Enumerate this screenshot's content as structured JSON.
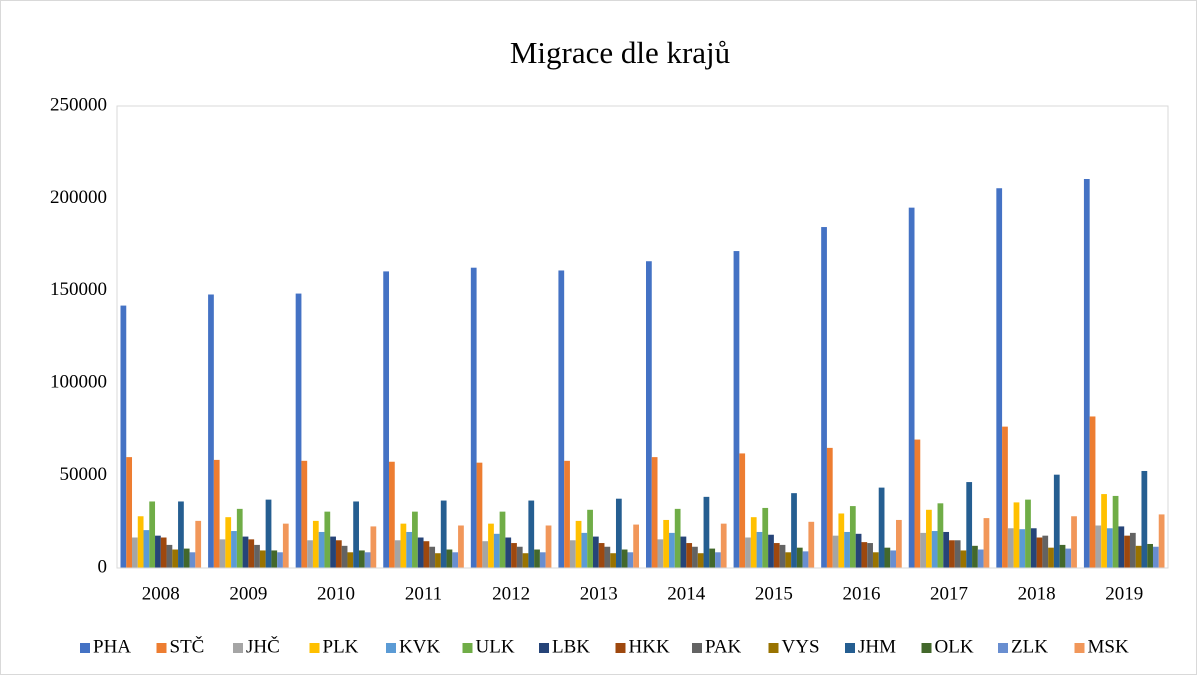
{
  "chart_data": {
    "type": "bar",
    "title": "Migrace dle krajů",
    "categories": [
      "2008",
      "2009",
      "2010",
      "2011",
      "2012",
      "2013",
      "2014",
      "2015",
      "2016",
      "2017",
      "2018",
      "2019"
    ],
    "series": [
      {
        "name": "PHA",
        "color": "#4472c4",
        "values": [
          142000,
          148000,
          148500,
          160500,
          162500,
          161000,
          166000,
          171500,
          184500,
          195000,
          205500,
          210500
        ]
      },
      {
        "name": "STČ",
        "color": "#ed7d31",
        "values": [
          60000,
          58500,
          58000,
          57500,
          57000,
          58000,
          60000,
          62000,
          65000,
          69500,
          76500,
          82000
        ]
      },
      {
        "name": "JHČ",
        "color": "#a5a5a5",
        "values": [
          16500,
          15500,
          15000,
          15000,
          14500,
          15000,
          15500,
          16500,
          17500,
          19000,
          21500,
          23000
        ]
      },
      {
        "name": "PLK",
        "color": "#ffc000",
        "values": [
          28000,
          27500,
          25500,
          24000,
          24000,
          25500,
          26000,
          27500,
          29500,
          31500,
          35500,
          40000
        ]
      },
      {
        "name": "KVK",
        "color": "#5b9bd5",
        "values": [
          20500,
          20000,
          19500,
          19500,
          18500,
          19000,
          19000,
          19500,
          19500,
          20000,
          21000,
          21500
        ]
      },
      {
        "name": "ULK",
        "color": "#70ad47",
        "values": [
          36000,
          32000,
          30500,
          30500,
          30500,
          31500,
          32000,
          32500,
          33500,
          35000,
          37000,
          39000
        ]
      },
      {
        "name": "LBK",
        "color": "#264478",
        "values": [
          17500,
          17000,
          17000,
          16500,
          16500,
          17000,
          17000,
          18000,
          18500,
          19500,
          21500,
          22500
        ]
      },
      {
        "name": "HKK",
        "color": "#9e480e",
        "values": [
          16500,
          15500,
          15000,
          14500,
          13500,
          13500,
          13500,
          13500,
          14000,
          15000,
          16500,
          17500
        ]
      },
      {
        "name": "PAK",
        "color": "#636363",
        "values": [
          12500,
          12500,
          12000,
          11500,
          11500,
          11500,
          11500,
          12500,
          13500,
          15000,
          17500,
          19000
        ]
      },
      {
        "name": "VYS",
        "color": "#997300",
        "values": [
          10000,
          9500,
          8500,
          8000,
          8000,
          8000,
          8000,
          8500,
          8500,
          9500,
          11000,
          12000
        ]
      },
      {
        "name": "JHM",
        "color": "#255e91",
        "values": [
          36000,
          37000,
          36000,
          36500,
          36500,
          37500,
          38500,
          40500,
          43500,
          46500,
          50500,
          52500
        ]
      },
      {
        "name": "OLK",
        "color": "#43682b",
        "values": [
          10500,
          9500,
          9500,
          10000,
          10000,
          10000,
          10500,
          11000,
          11000,
          12000,
          12500,
          13000
        ]
      },
      {
        "name": "ZLK",
        "color": "#698ed0",
        "values": [
          8500,
          8500,
          8500,
          8500,
          8500,
          8500,
          8500,
          9000,
          9500,
          10000,
          10500,
          11500
        ]
      },
      {
        "name": "MSK",
        "color": "#f1975a",
        "values": [
          25500,
          24000,
          22500,
          23000,
          23000,
          23500,
          24000,
          25000,
          26000,
          27000,
          28000,
          29000
        ]
      }
    ],
    "ylim": [
      0,
      250000
    ],
    "yticks": [
      0,
      50000,
      100000,
      150000,
      200000,
      250000
    ],
    "grid": false,
    "legend": "bottom"
  }
}
